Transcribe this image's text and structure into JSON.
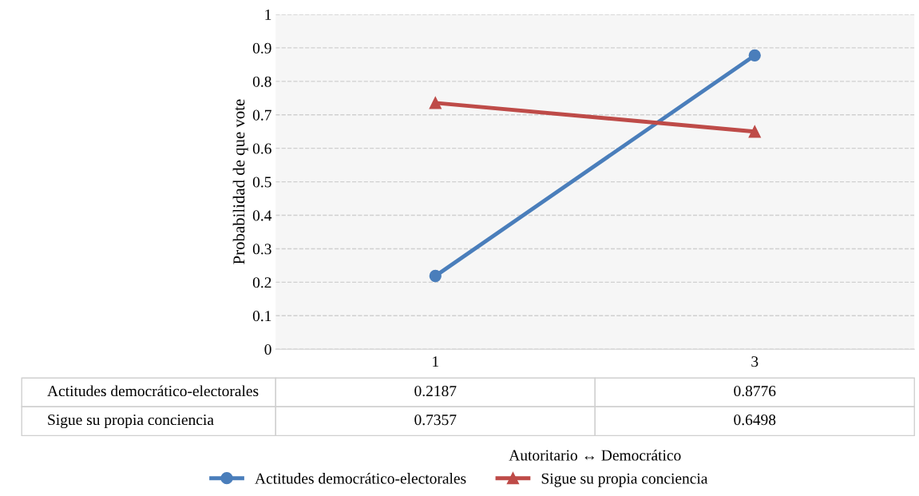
{
  "chart_data": {
    "type": "line",
    "ylabel": "Probabilidad de que vote",
    "annotations": [
      "Autoritario ↔ Democrático"
    ],
    "categories": [
      "1",
      "3"
    ],
    "series": [
      {
        "name": "Actitudes democrático-electorales",
        "color": "#4a7ebb",
        "values": [
          0.2187,
          0.8776
        ],
        "marker": "circle"
      },
      {
        "name": "Sigue su propia conciencia",
        "color": "#be4b48",
        "values": [
          0.7357,
          0.6498
        ],
        "marker": "triangle"
      }
    ],
    "ylim": [
      0,
      1
    ],
    "yticks": [
      0,
      0.1,
      0.2,
      0.3,
      0.4,
      0.5,
      0.6,
      0.7,
      0.8,
      0.9,
      1
    ],
    "grid": "y",
    "legend": "bottom",
    "data_labels": true
  }
}
